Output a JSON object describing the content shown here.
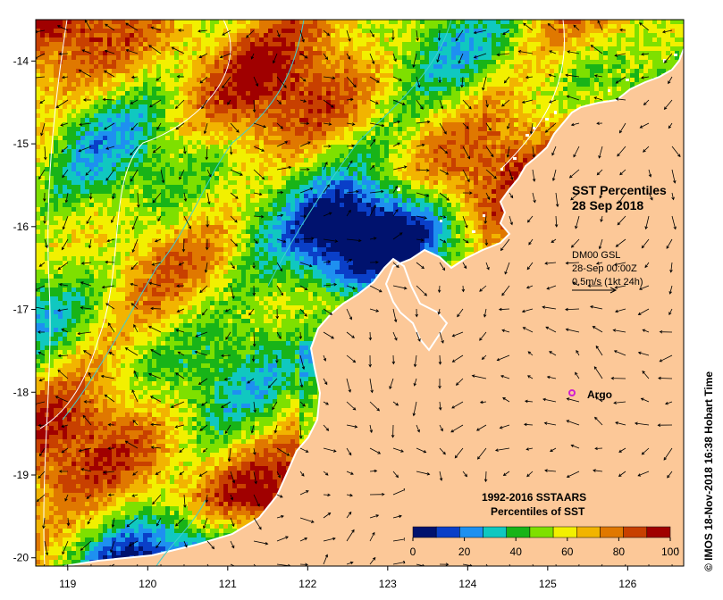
{
  "title": {
    "line1": "SST Percentiles",
    "line2": "28 Sep 2018"
  },
  "current_info": {
    "model": "DM00 GSL",
    "time": "28-Sep 00:00Z",
    "scale": "0.5m/s (1kt 24h)"
  },
  "argo": {
    "label": "Argo",
    "color": "#d020d0"
  },
  "legend": {
    "title_line1": "1992-2016 SSTAARS",
    "title_line2": "Percentiles of SST",
    "ticks": [
      "0",
      "20",
      "40",
      "60",
      "80",
      "100"
    ],
    "colors": [
      "#00126e",
      "#0a3fc8",
      "#1e90f0",
      "#10c8c0",
      "#18b418",
      "#7ee000",
      "#f2f000",
      "#f2b400",
      "#e07800",
      "#c84000",
      "#a00000"
    ]
  },
  "axes": {
    "x_ticks": [
      "119",
      "120",
      "121",
      "122",
      "123",
      "124",
      "125",
      "126"
    ],
    "y_ticks": [
      "-14",
      "-15",
      "-16",
      "-17",
      "-18",
      "-19",
      "-20"
    ],
    "lon_range": [
      118.6,
      126.7
    ],
    "lat_range": [
      -20.1,
      -13.5
    ]
  },
  "credit": "© IMOS 18-Nov-2018 16:38 Hobart Time",
  "colors": {
    "land": "#fcc898",
    "coast": "#ffffff",
    "isobath": "#40d0d0"
  }
}
